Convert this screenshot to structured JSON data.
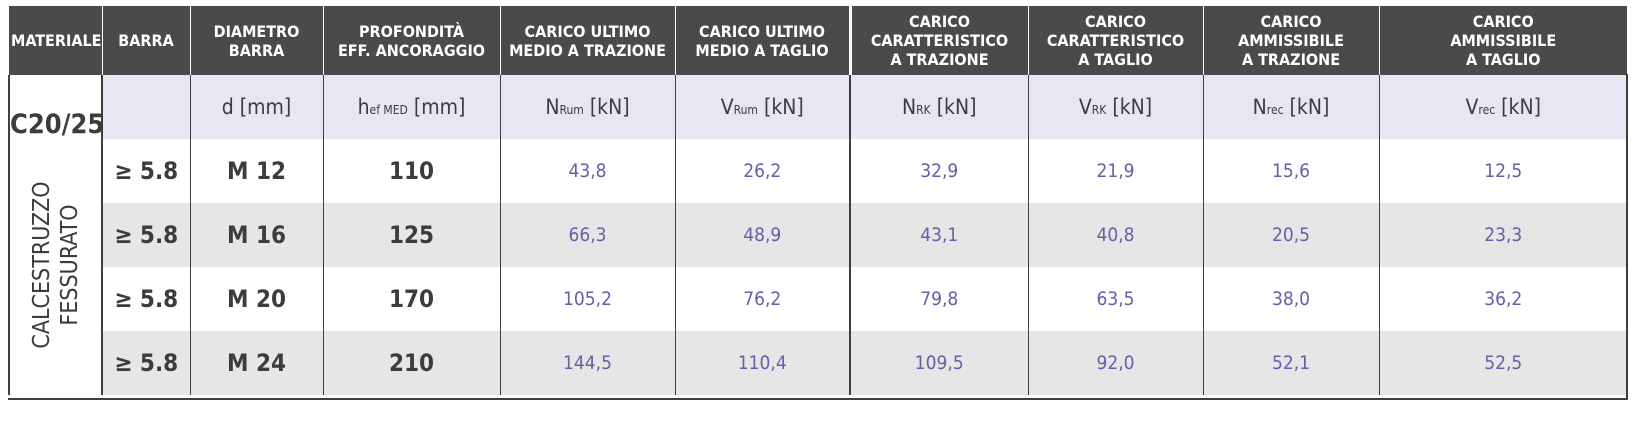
{
  "headers": [
    {
      "line1": "MATERIALE",
      "line2": "",
      "line3": ""
    },
    {
      "line1": "BARRA",
      "line2": "",
      "line3": ""
    },
    {
      "line1": "DIAMETRO",
      "line2": "BARRA",
      "line3": ""
    },
    {
      "line1": "PROFONDITÀ",
      "line2": "EFF. ANCORAGGIO",
      "line3": ""
    },
    {
      "line1": "CARICO ULTIMO",
      "line2": "MEDIO A TRAZIONE",
      "line3": ""
    },
    {
      "line1": "CARICO ULTIMO",
      "line2": "MEDIO A TAGLIO",
      "line3": ""
    },
    {
      "line1": "CARICO",
      "line2": "CARATTERISTICO",
      "line3": "A TRAZIONE"
    },
    {
      "line1": "CARICO",
      "line2": "CARATTERISTICO",
      "line3": "A TAGLIO"
    },
    {
      "line1": "CARICO",
      "line2": "AMMISSIBILE",
      "line3": "A TRAZIONE"
    },
    {
      "line1": "CARICO",
      "line2": "AMMISSIBILE",
      "line3": "A TAGLIO"
    }
  ],
  "material": {
    "grade": "C20/25",
    "line1": "CALCESTRUZZO",
    "line2": "FESSURATO"
  },
  "units": [
    {
      "main": "",
      "sub": "",
      "unit": ""
    },
    {
      "main": "d",
      "sub": "",
      "unit": "[mm]"
    },
    {
      "main": "h",
      "sub": "ef MED",
      "unit": "[mm]"
    },
    {
      "main": "N",
      "sub": "Rum",
      "unit": "[kN]"
    },
    {
      "main": "V",
      "sub": "Rum",
      "unit": "[kN]"
    },
    {
      "main": "N",
      "sub": "RK",
      "unit": "[kN]"
    },
    {
      "main": "V",
      "sub": "RK",
      "unit": "[kN]"
    },
    {
      "main": "N",
      "sub": "rec",
      "unit": "[kN]"
    },
    {
      "main": "V",
      "sub": "rec",
      "unit": "[kN]"
    }
  ],
  "rows": [
    {
      "barra": "≥ 5.8",
      "diametro": "M 12",
      "profondita": "110",
      "n_rum": "43,8",
      "v_rum": "26,2",
      "n_rk": "32,9",
      "v_rk": "21,9",
      "n_rec": "15,6",
      "v_rec": "12,5"
    },
    {
      "barra": "≥ 5.8",
      "diametro": "M 16",
      "profondita": "125",
      "n_rum": "66,3",
      "v_rum": "48,9",
      "n_rk": "43,1",
      "v_rk": "40,8",
      "n_rec": "20,5",
      "v_rec": "23,3"
    },
    {
      "barra": "≥ 5.8",
      "diametro": "M 20",
      "profondita": "170",
      "n_rum": "105,2",
      "v_rum": "76,2",
      "n_rk": "79,8",
      "v_rk": "63,5",
      "n_rec": "38,0",
      "v_rec": "36,2"
    },
    {
      "barra": "≥ 5.8",
      "diametro": "M 24",
      "profondita": "210",
      "n_rum": "144,5",
      "v_rum": "110,4",
      "n_rk": "109,5",
      "v_rk": "92,0",
      "n_rec": "52,1",
      "v_rec": "52,5"
    }
  ]
}
